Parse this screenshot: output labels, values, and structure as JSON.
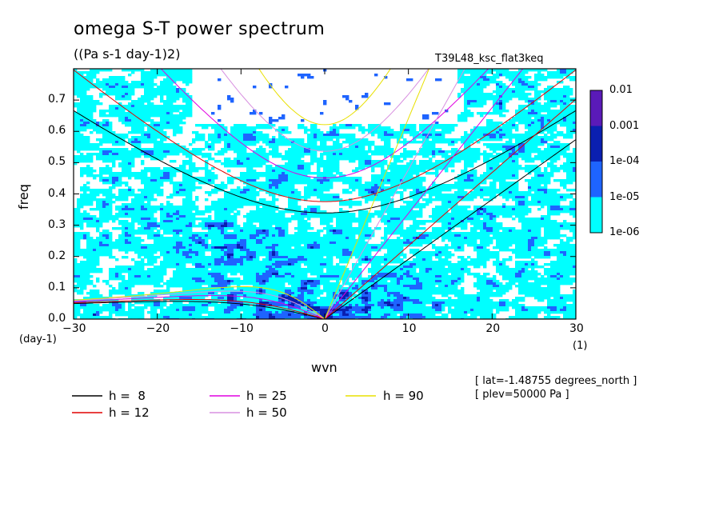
{
  "chart_data": {
    "type": "heatmap",
    "title": "omega S-T power spectrum",
    "subtitle": "((Pa s-1 day-1)2)",
    "experiment": "T39L48_ksc_flat3keq",
    "xlabel": "wvn",
    "ylabel": "freq",
    "x_unit": "(1)",
    "y_unit": "(day-1)",
    "xlim": [
      -30,
      30
    ],
    "ylim": [
      0,
      0.8
    ],
    "xticks": [
      -30,
      -20,
      -10,
      0,
      10,
      20,
      30
    ],
    "yticks": [
      0.0,
      0.1,
      0.2,
      0.3,
      0.4,
      0.5,
      0.6,
      0.7
    ],
    "ytick_labels": [
      "0.0",
      "0.1",
      "0.2",
      "0.3",
      "0.4",
      "0.5",
      "0.6",
      "0.7"
    ],
    "colorbar": {
      "labels": [
        "0.01",
        "0.001",
        "1e-04",
        "1e-05",
        "1e-06"
      ],
      "colors": [
        "#5a1ab8",
        "#0a1fb0",
        "#1e64ff",
        "#00ffff"
      ]
    },
    "dispersion_legend": [
      {
        "label": "h =  8",
        "h": 8,
        "color": "#000000"
      },
      {
        "label": "h = 12",
        "h": 12,
        "color": "#e00000"
      },
      {
        "label": "h = 25",
        "h": 25,
        "color": "#e000e0"
      },
      {
        "label": "h = 50",
        "h": 50,
        "color": "#d890e0"
      },
      {
        "label": "h = 90",
        "h": 90,
        "color": "#e8e000"
      }
    ],
    "info_lines": [
      "[ lat=-1.48755 degrees_north ]",
      "[ plev=50000 Pa ]"
    ]
  }
}
